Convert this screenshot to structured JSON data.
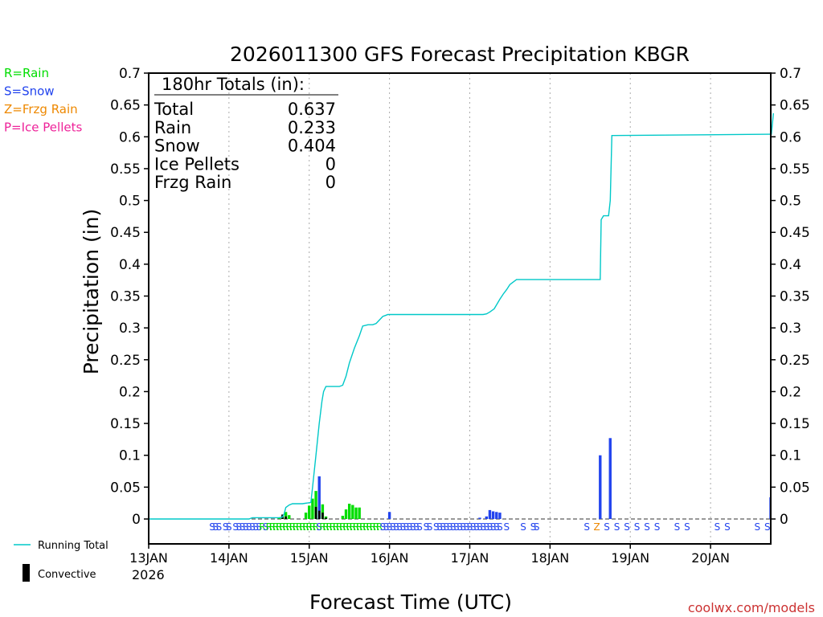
{
  "chart_data": {
    "type": "bar",
    "title": "2026011300 GFS Forecast Precipitation KBGR",
    "xlabel": "Forecast Time (UTC)",
    "ylabel": "Precipitation (in)",
    "ylim": [
      0,
      0.7
    ],
    "y_ticks": [
      "0",
      "0.05",
      "0.1",
      "0.15",
      "0.2",
      "0.25",
      "0.3",
      "0.35",
      "0.4",
      "0.45",
      "0.5",
      "0.55",
      "0.6",
      "0.65",
      "0.7"
    ],
    "x_range_hours": [
      0,
      186
    ],
    "x_ticks": [
      {
        "hour": 0,
        "label": "13JAN"
      },
      {
        "hour": 24,
        "label": "14JAN"
      },
      {
        "hour": 48,
        "label": "15JAN"
      },
      {
        "hour": 72,
        "label": "16JAN"
      },
      {
        "hour": 96,
        "label": "17JAN"
      },
      {
        "hour": 120,
        "label": "18JAN"
      },
      {
        "hour": 144,
        "label": "19JAN"
      },
      {
        "hour": 168,
        "label": "20JAN"
      }
    ],
    "year_label": "2026",
    "legend": [
      {
        "label": "R=Rain",
        "color": "#00dd00"
      },
      {
        "label": "S=Snow",
        "color": "#2244ee"
      },
      {
        "label": "Z=Frzg Rain",
        "color": "#ee8800"
      },
      {
        "label": "P=Ice Pellets",
        "color": "#ee2299"
      }
    ],
    "series_legend": [
      {
        "label": "Running Total",
        "color": "#00c8c8",
        "kind": "line"
      },
      {
        "label": "Convective",
        "color": "#000000",
        "kind": "bar"
      }
    ],
    "totals": {
      "header": "180hr Totals (in):",
      "rows": [
        {
          "label": "Total",
          "value": "0.637"
        },
        {
          "label": "Rain",
          "value": "0.233"
        },
        {
          "label": "Snow",
          "value": "0.404"
        },
        {
          "label": "Ice Pellets",
          "value": "0"
        },
        {
          "label": "Frzg Rain",
          "value": "0"
        }
      ]
    },
    "running_total": {
      "color": "#00c8c8",
      "x": [
        0,
        30,
        31,
        39,
        40,
        40.5,
        41,
        42,
        43,
        45,
        46,
        48.5,
        49,
        50,
        51,
        51.8,
        52.3,
        53,
        57,
        58,
        59,
        60,
        61.5,
        63,
        64,
        65.6,
        66,
        67,
        68,
        70,
        71,
        71.5,
        72.5,
        100,
        101,
        102,
        103.3,
        105,
        106,
        107,
        108,
        110,
        111,
        112,
        113,
        135,
        135.3,
        136,
        137,
        137.5,
        138,
        138.5,
        186,
        186.2,
        186.8
      ],
      "y": [
        0,
        0,
        0.002,
        0.002,
        0.003,
        0.008,
        0.018,
        0.022,
        0.024,
        0.024,
        0.024,
        0.026,
        0.05,
        0.1,
        0.15,
        0.185,
        0.2,
        0.208,
        0.208,
        0.21,
        0.224,
        0.245,
        0.268,
        0.288,
        0.303,
        0.305,
        0.305,
        0.305,
        0.307,
        0.318,
        0.32,
        0.321,
        0.321,
        0.321,
        0.322,
        0.325,
        0.33,
        0.345,
        0.353,
        0.36,
        0.368,
        0.376,
        0.376,
        0.376,
        0.376,
        0.376,
        0.47,
        0.476,
        0.476,
        0.476,
        0.5,
        0.602,
        0.604,
        0.604,
        0.637
      ]
    },
    "precip_bars": [
      {
        "hour": 39,
        "type": "rain",
        "value": 0.002
      },
      {
        "hour": 40,
        "type": "rain",
        "value": 0.004
      },
      {
        "hour": 41,
        "type": "rain",
        "value": 0.011
      },
      {
        "hour": 42,
        "type": "rain",
        "value": 0.006
      },
      {
        "hour": 47,
        "type": "rain",
        "value": 0.01
      },
      {
        "hour": 48,
        "type": "rain",
        "value": 0.021
      },
      {
        "hour": 49,
        "type": "rain",
        "value": 0.032
      },
      {
        "hour": 50,
        "type": "rain",
        "value": 0.044
      },
      {
        "hour": 51,
        "type": "snow",
        "value": 0.067
      },
      {
        "hour": 52,
        "type": "rain",
        "value": 0.023
      },
      {
        "hour": 53,
        "type": "rain",
        "value": 0.004
      },
      {
        "hour": 58,
        "type": "rain",
        "value": 0.005
      },
      {
        "hour": 59,
        "type": "rain",
        "value": 0.015
      },
      {
        "hour": 60,
        "type": "rain",
        "value": 0.024
      },
      {
        "hour": 61,
        "type": "rain",
        "value": 0.022
      },
      {
        "hour": 62,
        "type": "rain",
        "value": 0.018
      },
      {
        "hour": 63,
        "type": "rain",
        "value": 0.018
      },
      {
        "hour": 72,
        "type": "snow",
        "value": 0.011
      },
      {
        "hour": 99,
        "type": "snow",
        "value": 0.002
      },
      {
        "hour": 101,
        "type": "snow",
        "value": 0.004
      },
      {
        "hour": 102,
        "type": "snow",
        "value": 0.014
      },
      {
        "hour": 103,
        "type": "snow",
        "value": 0.012
      },
      {
        "hour": 104,
        "type": "snow",
        "value": 0.011
      },
      {
        "hour": 105,
        "type": "snow",
        "value": 0.01
      },
      {
        "hour": 135,
        "type": "snow",
        "value": 0.1
      },
      {
        "hour": 138,
        "type": "snow",
        "value": 0.127
      },
      {
        "hour": 186,
        "type": "snow",
        "value": 0.034
      }
    ],
    "convective_bars": [
      {
        "hour": 40,
        "value": 0.007
      },
      {
        "hour": 41,
        "value": 0.004
      },
      {
        "hour": 50,
        "value": 0.019
      },
      {
        "hour": 51,
        "value": 0.013
      },
      {
        "hour": 52,
        "value": 0.01
      },
      {
        "hour": 53,
        "value": 0.002
      }
    ],
    "ptype_markers": [
      {
        "text": "S",
        "hour": 19,
        "type": "snow"
      },
      {
        "text": "S",
        "hour": 20,
        "type": "snow"
      },
      {
        "text": "S",
        "hour": 21,
        "type": "snow"
      },
      {
        "text": "S",
        "hour": 23,
        "type": "snow"
      },
      {
        "text": "S",
        "hour": 24,
        "type": "snow"
      },
      {
        "text": "S",
        "hour": 26,
        "type": "snow"
      },
      {
        "text": "S",
        "hour": 27,
        "type": "snow"
      },
      {
        "text": "S",
        "hour": 28,
        "type": "snow"
      },
      {
        "text": "S",
        "hour": 29,
        "type": "snow"
      },
      {
        "text": "S",
        "hour": 30,
        "type": "snow"
      },
      {
        "text": "S",
        "hour": 31,
        "type": "snow"
      },
      {
        "text": "S",
        "hour": 32,
        "type": "snow"
      },
      {
        "text": "S",
        "hour": 33,
        "type": "snow"
      },
      {
        "text": "R",
        "hour": 34,
        "type": "rain"
      },
      {
        "text": "S",
        "hour": 35,
        "type": "snow"
      },
      {
        "text": "R",
        "hour": 36,
        "type": "rain"
      },
      {
        "text": "R",
        "hour": 37,
        "type": "rain"
      },
      {
        "text": "R",
        "hour": 38,
        "type": "rain"
      },
      {
        "text": "R",
        "hour": 39,
        "type": "rain"
      },
      {
        "text": "R",
        "hour": 40,
        "type": "rain"
      },
      {
        "text": "R",
        "hour": 41,
        "type": "rain"
      },
      {
        "text": "R",
        "hour": 42,
        "type": "rain"
      },
      {
        "text": "R",
        "hour": 43,
        "type": "rain"
      },
      {
        "text": "R",
        "hour": 44,
        "type": "rain"
      },
      {
        "text": "R",
        "hour": 45,
        "type": "rain"
      },
      {
        "text": "R",
        "hour": 46,
        "type": "rain"
      },
      {
        "text": "R",
        "hour": 47,
        "type": "rain"
      },
      {
        "text": "R",
        "hour": 48,
        "type": "rain"
      },
      {
        "text": "R",
        "hour": 49,
        "type": "rain"
      },
      {
        "text": "R",
        "hour": 50,
        "type": "rain"
      },
      {
        "text": "S",
        "hour": 51,
        "type": "snow"
      },
      {
        "text": "R",
        "hour": 52,
        "type": "rain"
      },
      {
        "text": "R",
        "hour": 53,
        "type": "rain"
      },
      {
        "text": "R",
        "hour": 54,
        "type": "rain"
      },
      {
        "text": "R",
        "hour": 55,
        "type": "rain"
      },
      {
        "text": "R",
        "hour": 56,
        "type": "rain"
      },
      {
        "text": "R",
        "hour": 57,
        "type": "rain"
      },
      {
        "text": "R",
        "hour": 58,
        "type": "rain"
      },
      {
        "text": "R",
        "hour": 59,
        "type": "rain"
      },
      {
        "text": "R",
        "hour": 60,
        "type": "rain"
      },
      {
        "text": "R",
        "hour": 61,
        "type": "rain"
      },
      {
        "text": "R",
        "hour": 62,
        "type": "rain"
      },
      {
        "text": "R",
        "hour": 63,
        "type": "rain"
      },
      {
        "text": "R",
        "hour": 64,
        "type": "rain"
      },
      {
        "text": "R",
        "hour": 65,
        "type": "rain"
      },
      {
        "text": "R",
        "hour": 66,
        "type": "rain"
      },
      {
        "text": "R",
        "hour": 67,
        "type": "rain"
      },
      {
        "text": "R",
        "hour": 68,
        "type": "rain"
      },
      {
        "text": "R",
        "hour": 69,
        "type": "rain"
      },
      {
        "text": "S",
        "hour": 70,
        "type": "snow"
      },
      {
        "text": "S",
        "hour": 71,
        "type": "snow"
      },
      {
        "text": "S",
        "hour": 72,
        "type": "snow"
      },
      {
        "text": "S",
        "hour": 73,
        "type": "snow"
      },
      {
        "text": "S",
        "hour": 74,
        "type": "snow"
      },
      {
        "text": "S",
        "hour": 75,
        "type": "snow"
      },
      {
        "text": "S",
        "hour": 76,
        "type": "snow"
      },
      {
        "text": "S",
        "hour": 77,
        "type": "snow"
      },
      {
        "text": "S",
        "hour": 78,
        "type": "snow"
      },
      {
        "text": "S",
        "hour": 79,
        "type": "snow"
      },
      {
        "text": "S",
        "hour": 80,
        "type": "snow"
      },
      {
        "text": "S",
        "hour": 81,
        "type": "snow"
      },
      {
        "text": "S",
        "hour": 83,
        "type": "snow"
      },
      {
        "text": "S",
        "hour": 84,
        "type": "snow"
      },
      {
        "text": "S",
        "hour": 86,
        "type": "snow"
      },
      {
        "text": "S",
        "hour": 87,
        "type": "snow"
      },
      {
        "text": "S",
        "hour": 88,
        "type": "snow"
      },
      {
        "text": "S",
        "hour": 89,
        "type": "snow"
      },
      {
        "text": "S",
        "hour": 90,
        "type": "snow"
      },
      {
        "text": "S",
        "hour": 91,
        "type": "snow"
      },
      {
        "text": "S",
        "hour": 92,
        "type": "snow"
      },
      {
        "text": "S",
        "hour": 93,
        "type": "snow"
      },
      {
        "text": "S",
        "hour": 94,
        "type": "snow"
      },
      {
        "text": "S",
        "hour": 95,
        "type": "snow"
      },
      {
        "text": "S",
        "hour": 96,
        "type": "snow"
      },
      {
        "text": "S",
        "hour": 97,
        "type": "snow"
      },
      {
        "text": "S",
        "hour": 98,
        "type": "snow"
      },
      {
        "text": "S",
        "hour": 99,
        "type": "snow"
      },
      {
        "text": "S",
        "hour": 100,
        "type": "snow"
      },
      {
        "text": "S",
        "hour": 101,
        "type": "snow"
      },
      {
        "text": "S",
        "hour": 102,
        "type": "snow"
      },
      {
        "text": "S",
        "hour": 103,
        "type": "snow"
      },
      {
        "text": "S",
        "hour": 104,
        "type": "snow"
      },
      {
        "text": "S",
        "hour": 105,
        "type": "snow"
      },
      {
        "text": "S",
        "hour": 107,
        "type": "snow"
      },
      {
        "text": "S",
        "hour": 112,
        "type": "snow"
      },
      {
        "text": "S",
        "hour": 115,
        "type": "snow"
      },
      {
        "text": "S",
        "hour": 116,
        "type": "snow"
      },
      {
        "text": "S",
        "hour": 131,
        "type": "snow"
      },
      {
        "text": "Z",
        "hour": 134,
        "type": "frzg"
      },
      {
        "text": "S",
        "hour": 137,
        "type": "snow"
      },
      {
        "text": "S",
        "hour": 140,
        "type": "snow"
      },
      {
        "text": "S",
        "hour": 143,
        "type": "snow"
      },
      {
        "text": "S",
        "hour": 146,
        "type": "snow"
      },
      {
        "text": "S",
        "hour": 149,
        "type": "snow"
      },
      {
        "text": "S",
        "hour": 152,
        "type": "snow"
      },
      {
        "text": "S",
        "hour": 158,
        "type": "snow"
      },
      {
        "text": "S",
        "hour": 161,
        "type": "snow"
      },
      {
        "text": "S",
        "hour": 170,
        "type": "snow"
      },
      {
        "text": "S",
        "hour": 173,
        "type": "snow"
      },
      {
        "text": "S",
        "hour": 182,
        "type": "snow"
      },
      {
        "text": "S",
        "hour": 185,
        "type": "snow"
      }
    ],
    "type_colors": {
      "rain": "#00dd00",
      "snow": "#2244ee",
      "frzg": "#ee8800",
      "ice": "#ee2299"
    },
    "credit": "coolwx.com/models",
    "credit_color": "#cc3333"
  }
}
